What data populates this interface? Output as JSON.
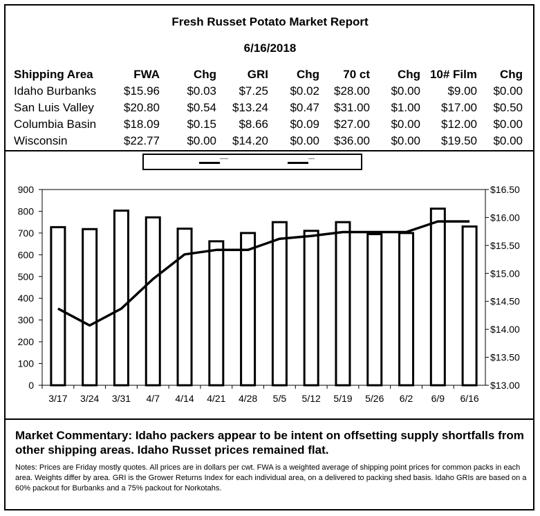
{
  "report": {
    "title": "Fresh Russet Potato Market Report",
    "date": "6/16/2018"
  },
  "price_table": {
    "headers": [
      "Shipping Area",
      "FWA",
      "Chg",
      "GRI",
      "Chg",
      "70 ct",
      "Chg",
      "10# Film",
      "Chg"
    ],
    "rows": [
      [
        "Idaho Burbanks",
        "$15.96",
        "$0.03",
        "$7.25",
        "$0.02",
        "$28.00",
        "$0.00",
        "$9.00",
        "$0.00"
      ],
      [
        "San Luis Valley",
        "$20.80",
        "$0.54",
        "$13.24",
        "$0.47",
        "$31.00",
        "$1.00",
        "$17.00",
        "$0.50"
      ],
      [
        "Columbia Basin",
        "$18.09",
        "$0.15",
        "$8.66",
        "$0.09",
        "$27.00",
        "$0.00",
        "$12.00",
        "$0.00"
      ],
      [
        "Wisconsin",
        "$22.77",
        "$0.00",
        "$14.20",
        "$0.00",
        "$36.00",
        "$0.00",
        "$19.50",
        "$0.00"
      ]
    ]
  },
  "chart_data": {
    "type": "bar",
    "categories": [
      "3/17",
      "3/24",
      "3/31",
      "4/7",
      "4/14",
      "4/21",
      "4/28",
      "5/5",
      "5/12",
      "5/19",
      "5/26",
      "6/2",
      "6/9",
      "6/16"
    ],
    "series": [
      {
        "axis": "left",
        "kind": "bar",
        "color": "#000000",
        "values": [
          727,
          718,
          803,
          772,
          720,
          662,
          700,
          750,
          710,
          750,
          695,
          700,
          812,
          730
        ]
      },
      {
        "axis": "right",
        "kind": "line",
        "color": "#000000",
        "values": [
          14.37,
          14.07,
          14.37,
          14.9,
          15.34,
          15.42,
          15.42,
          15.62,
          15.67,
          15.74,
          15.74,
          15.74,
          15.93,
          15.93
        ]
      }
    ],
    "left_axis": {
      "min": 0,
      "max": 900,
      "step": 100,
      "ticks": [
        "0",
        "100",
        "200",
        "300",
        "400",
        "500",
        "600",
        "700",
        "800",
        "900"
      ]
    },
    "right_axis": {
      "min": 13.0,
      "max": 16.5,
      "step": 0.5,
      "ticks": [
        "$13.00",
        "$13.50",
        "$14.00",
        "$14.50",
        "$15.00",
        "$15.50",
        "$16.00",
        "$16.50"
      ]
    },
    "legend_labels": [
      "----",
      "---"
    ],
    "grid": false,
    "legend_position": "top"
  },
  "commentary": "Market Commentary: Idaho packers appear to be intent on offsetting supply shortfalls from other shipping areas. Idaho Russet prices remained flat.",
  "notes": "Notes: Prices are Friday mostly quotes. All prices are in dollars per cwt. FWA is a weighted average of shipping point prices for common packs in each area. Weights differ by area. GRI is the Grower Returns Index for each individual area, on a delivered to packing shed basis. Idaho GRIs are based on a 60% packout for Burbanks and a 75% packout for Norkotahs."
}
